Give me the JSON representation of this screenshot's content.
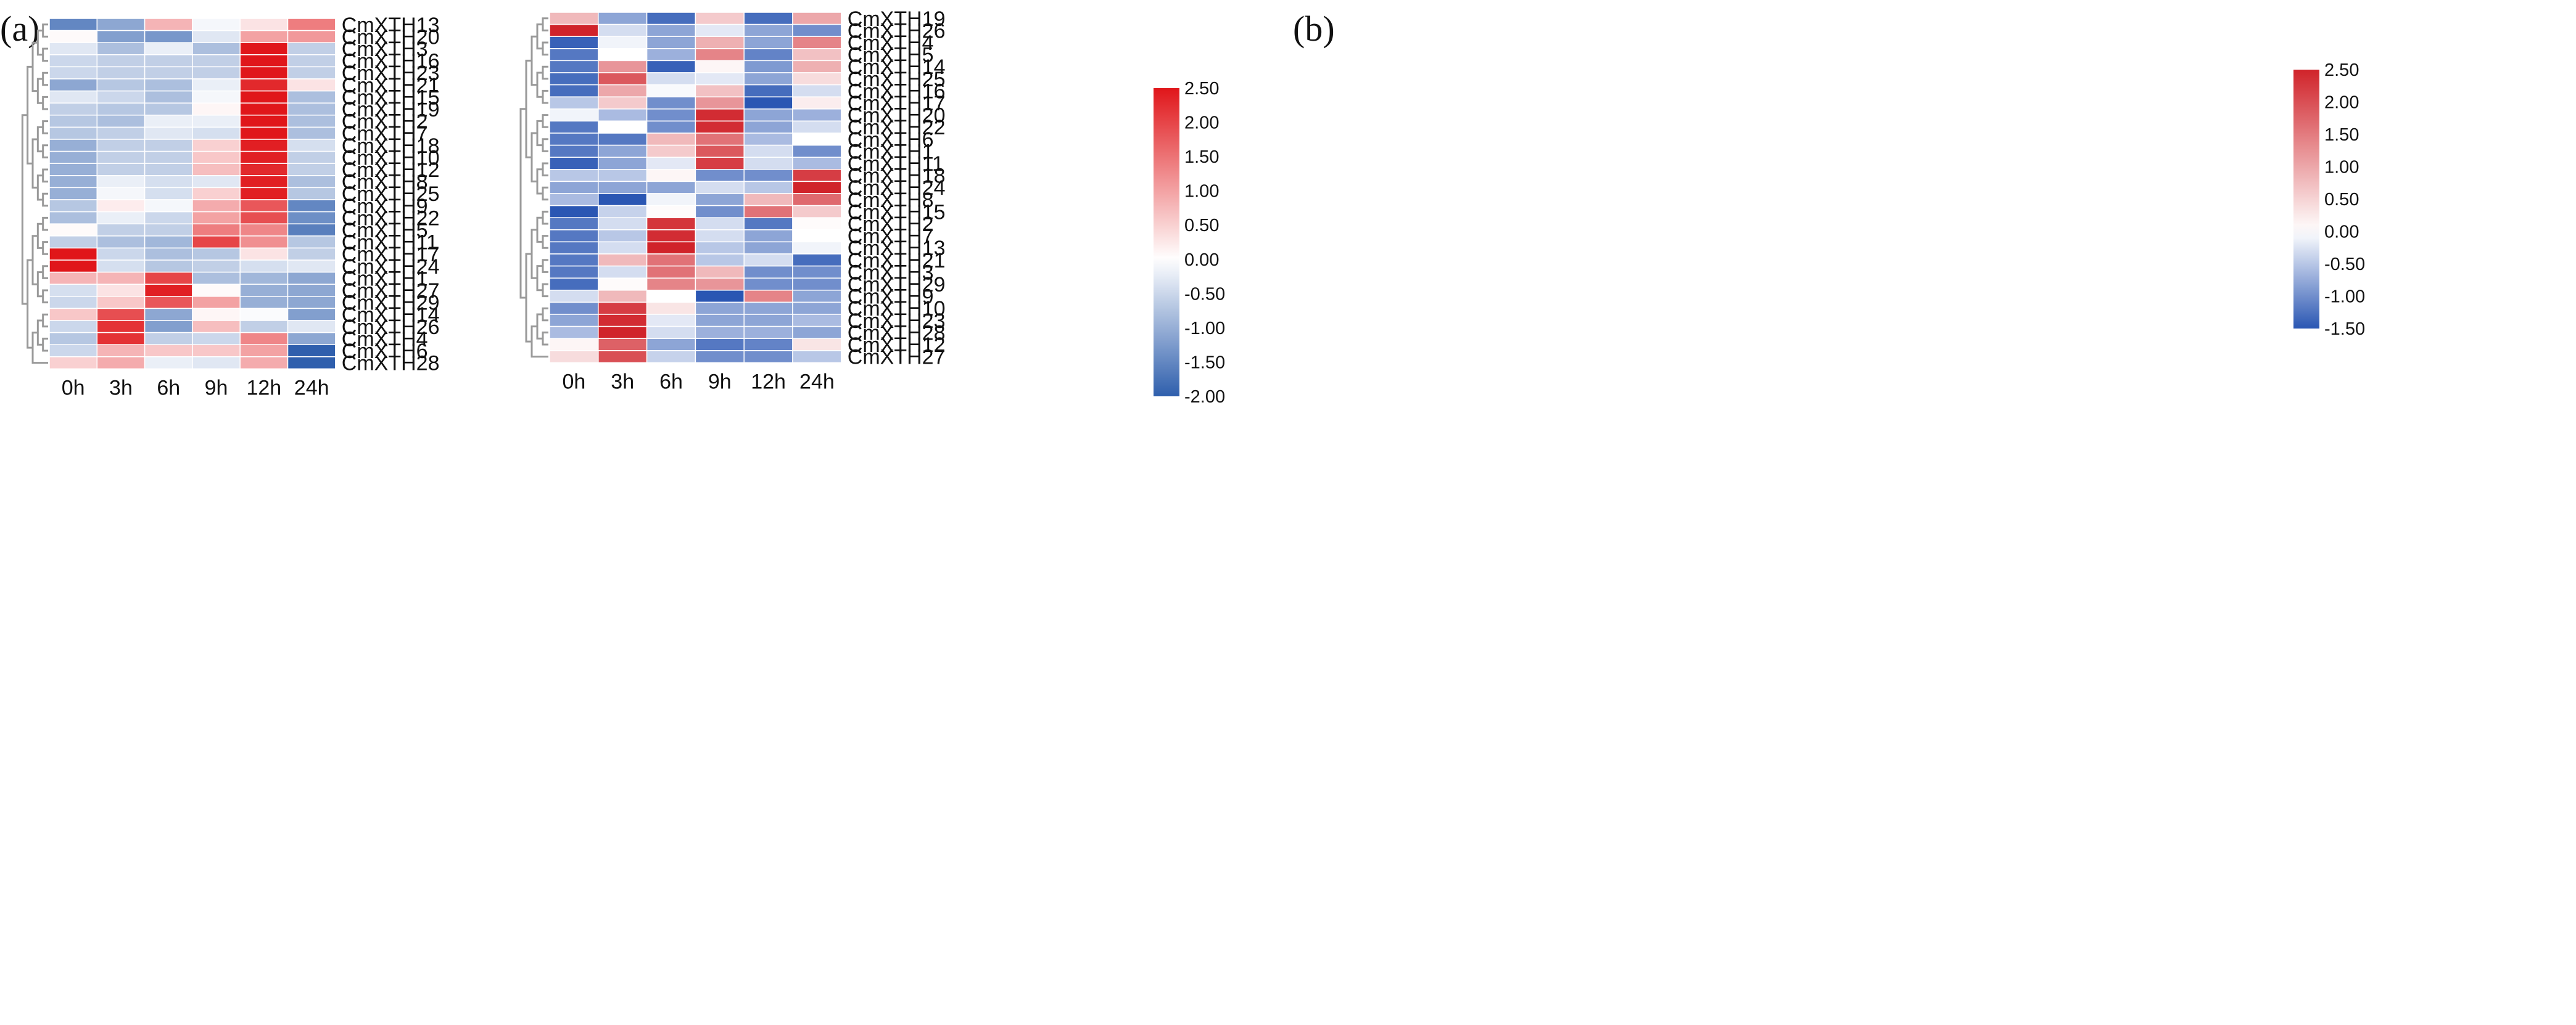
{
  "chart_data": [
    {
      "type": "heatmap",
      "panel_label": "(a)",
      "columns": [
        "0h",
        "3h",
        "6h",
        "9h",
        "12h",
        "24h"
      ],
      "rows": [
        "CmXTH13",
        "CmXTH20",
        "CmXTH3",
        "CmXTH16",
        "CmXTH23",
        "CmXTH21",
        "CmXTH15",
        "CmXTH19",
        "CmXTH2",
        "CmXTH7",
        "CmXTH18",
        "CmXTH10",
        "CmXTH12",
        "CmXTH8",
        "CmXTH25",
        "CmXTH9",
        "CmXTH22",
        "CmXTH5",
        "CmXTH11",
        "CmXTH17",
        "CmXTH24",
        "CmXTH1",
        "CmXTH27",
        "CmXTH29",
        "CmXTH14",
        "CmXTH26",
        "CmXTH4",
        "CmXTH6",
        "CmXTH28"
      ],
      "values": [
        [
          -1.5,
          -1.1,
          0.8,
          -0.1,
          0.3,
          1.4
        ],
        [
          0.05,
          -1.2,
          -1.3,
          -0.3,
          1.0,
          1.1
        ],
        [
          -0.3,
          -0.8,
          -0.2,
          -0.8,
          2.5,
          -0.6
        ],
        [
          -0.5,
          -0.6,
          -0.6,
          -0.6,
          2.5,
          -0.6
        ],
        [
          -0.5,
          -0.6,
          -0.6,
          -0.6,
          2.5,
          -0.6
        ],
        [
          -1.1,
          -0.7,
          -0.8,
          -0.2,
          2.3,
          0.3
        ],
        [
          -0.3,
          -0.5,
          -0.8,
          -0.1,
          2.5,
          -0.8
        ],
        [
          -0.6,
          -0.7,
          -0.7,
          0.1,
          2.5,
          -0.8
        ],
        [
          -0.7,
          -0.8,
          -0.2,
          -0.2,
          2.5,
          -0.8
        ],
        [
          -0.7,
          -0.6,
          -0.3,
          -0.4,
          2.5,
          -0.8
        ],
        [
          -1.0,
          -0.6,
          -0.6,
          0.5,
          2.4,
          -0.4
        ],
        [
          -1.0,
          -0.6,
          -0.6,
          0.6,
          2.4,
          -0.6
        ],
        [
          -1.0,
          -0.6,
          -0.6,
          0.7,
          2.3,
          -0.6
        ],
        [
          -1.0,
          -0.2,
          -0.4,
          -0.3,
          2.4,
          -0.8
        ],
        [
          -1.0,
          -0.1,
          -0.4,
          0.5,
          2.4,
          -0.7
        ],
        [
          -0.7,
          0.2,
          -0.1,
          0.9,
          1.8,
          -1.5
        ],
        [
          -0.8,
          -0.2,
          -0.5,
          1.0,
          1.9,
          -1.4
        ],
        [
          0.05,
          -0.6,
          -0.6,
          1.4,
          1.3,
          -1.6
        ],
        [
          -0.6,
          -0.8,
          -0.9,
          2.0,
          1.2,
          -0.7
        ],
        [
          2.5,
          -0.5,
          -0.8,
          -0.7,
          0.3,
          -0.6
        ],
        [
          2.5,
          -0.4,
          -0.7,
          -0.6,
          -0.4,
          -0.3
        ],
        [
          0.8,
          0.8,
          2.0,
          -0.8,
          -0.9,
          -1.1
        ],
        [
          -0.4,
          0.3,
          2.4,
          0.05,
          -1.0,
          -1.1
        ],
        [
          -0.5,
          0.6,
          1.8,
          1.0,
          -1.0,
          -1.1
        ],
        [
          0.6,
          1.9,
          -1.1,
          0.1,
          -0.05,
          -1.2
        ],
        [
          -0.5,
          2.2,
          -1.2,
          0.7,
          -0.6,
          -0.3
        ],
        [
          -0.7,
          2.2,
          -0.6,
          -0.5,
          1.3,
          -1.1
        ],
        [
          -0.5,
          0.8,
          0.6,
          0.6,
          1.0,
          -2.0
        ],
        [
          0.5,
          0.9,
          -0.2,
          -0.3,
          0.9,
          -2.0
        ]
      ],
      "color_scale": {
        "min": -2.0,
        "max": 2.5,
        "ticks": [
          "2.50",
          "2.00",
          "1.50",
          "1.00",
          "0.50",
          "0.00",
          "-0.50",
          "-1.00",
          "-1.50",
          "-2.00"
        ],
        "low_color": "#2f5fad",
        "mid_color": "#ffffff",
        "high_color": "#e0161a"
      }
    },
    {
      "type": "heatmap",
      "panel_label": "(b)",
      "columns": [
        "0h",
        "3h",
        "6h",
        "9h",
        "12h",
        "24h"
      ],
      "rows": [
        "CmXTH19",
        "CmXTH26",
        "CmXTH4",
        "CmXTH5",
        "CmXTH14",
        "CmXTH25",
        "CmXTH16",
        "CmXTH17",
        "CmXTH20",
        "CmXTH22",
        "CmXTH6",
        "CmXTH1",
        "CmXTH11",
        "CmXTH18",
        "CmXTH24",
        "CmXTH8",
        "CmXTH15",
        "CmXTH2",
        "CmXTH7",
        "CmXTH13",
        "CmXTH21",
        "CmXTH3",
        "CmXTH29",
        "CmXTH9",
        "CmXTH10",
        "CmXTH23",
        "CmXTH28",
        "CmXTH12",
        "CmXTH27"
      ],
      "values": [
        [
          0.8,
          -0.8,
          -1.3,
          0.6,
          -1.3,
          1.0
        ],
        [
          2.5,
          -0.3,
          -0.8,
          -0.2,
          -0.8,
          -1.0
        ],
        [
          -1.4,
          -0.1,
          -0.8,
          0.9,
          -0.8,
          1.4
        ],
        [
          -1.2,
          0.0,
          -0.7,
          1.4,
          -1.1,
          0.7
        ],
        [
          -1.2,
          1.2,
          -1.4,
          0.1,
          -0.9,
          0.9
        ],
        [
          -1.3,
          1.9,
          -0.3,
          -0.2,
          -0.8,
          0.4
        ],
        [
          -1.3,
          1.0,
          -0.05,
          0.7,
          -1.3,
          -0.3
        ],
        [
          -0.5,
          0.6,
          -1.0,
          1.2,
          -1.5,
          0.2
        ],
        [
          -0.1,
          -0.6,
          -1.0,
          2.4,
          -0.8,
          -0.7
        ],
        [
          -1.2,
          0.0,
          -1.0,
          2.4,
          -0.8,
          -0.3
        ],
        [
          -1.2,
          -1.2,
          0.8,
          1.6,
          -0.6,
          0.0
        ],
        [
          -1.2,
          -0.8,
          0.6,
          1.9,
          -0.3,
          -1.0
        ],
        [
          -1.4,
          -0.8,
          -0.2,
          2.2,
          -0.3,
          -0.6
        ],
        [
          -0.5,
          -0.5,
          0.1,
          -1.0,
          -1.0,
          2.2
        ],
        [
          -0.8,
          -0.8,
          -0.8,
          -0.3,
          -0.5,
          2.5
        ],
        [
          -0.6,
          -1.5,
          -0.1,
          -0.8,
          0.8,
          1.7
        ],
        [
          -1.6,
          -0.4,
          0.05,
          -1.0,
          1.6,
          0.6
        ],
        [
          -1.2,
          -0.3,
          2.3,
          -0.3,
          -1.2,
          0.05
        ],
        [
          -1.2,
          -0.5,
          2.4,
          -0.3,
          -0.8,
          0.0
        ],
        [
          -1.2,
          -0.3,
          2.5,
          -0.5,
          -0.8,
          -0.1
        ],
        [
          -1.2,
          0.8,
          1.6,
          -0.5,
          -0.3,
          -1.3
        ],
        [
          -1.2,
          -0.3,
          1.6,
          0.8,
          -1.0,
          -1.0
        ],
        [
          -1.3,
          0.05,
          1.4,
          1.2,
          -1.0,
          -1.0
        ],
        [
          -0.3,
          0.8,
          0.0,
          -1.6,
          1.4,
          -0.8
        ],
        [
          -1.0,
          2.2,
          0.3,
          -0.8,
          -0.8,
          -0.8
        ],
        [
          -0.8,
          2.4,
          -0.2,
          -0.8,
          -0.8,
          -0.6
        ],
        [
          -0.6,
          2.5,
          -0.3,
          -0.7,
          -0.7,
          -0.8
        ],
        [
          0.1,
          1.8,
          -0.8,
          -1.2,
          -1.1,
          0.3
        ],
        [
          0.4,
          2.0,
          -0.4,
          -1.0,
          -1.0,
          -0.5
        ]
      ],
      "color_scale": {
        "min": -1.5,
        "max": 2.5,
        "ticks": [
          "2.50",
          "2.00",
          "1.50",
          "1.00",
          "0.50",
          "0.00",
          "-0.50",
          "-1.00",
          "-1.50"
        ],
        "low_color": "#2a56b3",
        "mid_color": "#ffffff",
        "high_color": "#d0232a"
      }
    }
  ]
}
